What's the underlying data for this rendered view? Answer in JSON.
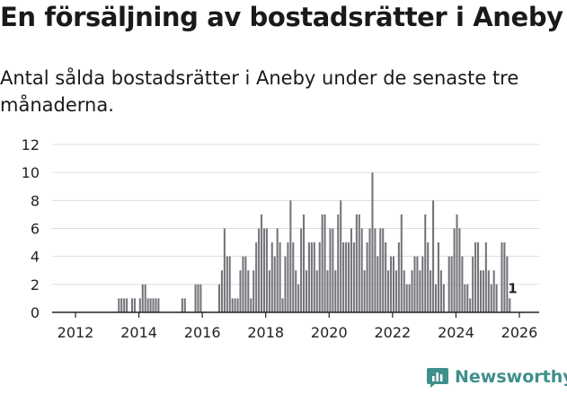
{
  "title": "En försäljning av bostadsrätter i Aneby",
  "subtitle": "Antal sålda bostadsrätter i Aneby under de senaste tre månaderna.",
  "brand": {
    "name": "Newsworthy"
  },
  "colors": {
    "bar": "#75737a",
    "highlight": "#3a9b96",
    "grid": "#dcdcdc",
    "axis": "#222222",
    "brand": "#3f8f8c"
  },
  "chart_data": {
    "type": "bar",
    "title": "En försäljning av bostadsrätter i Aneby",
    "xlabel": "",
    "ylabel": "",
    "x_start": 2011.6667,
    "bar_width_years": 0.0833,
    "ylim": [
      0,
      12
    ],
    "yticks": [
      0,
      2,
      4,
      6,
      8,
      10,
      12
    ],
    "xticks": [
      2012,
      2014,
      2016,
      2018,
      2020,
      2022,
      2024,
      2026
    ],
    "grid": true,
    "values": [
      0,
      0,
      0,
      0,
      0,
      0,
      0,
      0,
      0,
      0,
      0,
      0,
      0,
      0,
      0,
      0,
      0,
      0,
      0,
      0,
      1,
      1,
      1,
      1,
      0,
      1,
      1,
      0,
      1,
      2,
      2,
      1,
      1,
      1,
      1,
      1,
      0,
      0,
      0,
      0,
      0,
      0,
      0,
      0,
      1,
      1,
      0,
      0,
      0,
      2,
      2,
      2,
      0,
      0,
      0,
      0,
      0,
      0,
      2,
      3,
      6,
      4,
      4,
      1,
      1,
      1,
      3,
      4,
      4,
      3,
      1,
      3,
      5,
      6,
      7,
      6,
      6,
      3,
      5,
      4,
      6,
      5,
      1,
      4,
      5,
      8,
      5,
      3,
      2,
      6,
      7,
      3,
      5,
      5,
      5,
      3,
      5,
      7,
      7,
      3,
      6,
      6,
      3,
      7,
      8,
      5,
      5,
      5,
      6,
      5,
      7,
      7,
      6,
      3,
      5,
      6,
      10,
      6,
      4,
      6,
      6,
      5,
      3,
      4,
      4,
      3,
      5,
      7,
      3,
      2,
      2,
      3,
      4,
      4,
      3,
      4,
      7,
      5,
      3,
      8,
      2,
      5,
      3,
      2,
      0,
      4,
      4,
      6,
      7,
      6,
      4,
      2,
      2,
      1,
      4,
      5,
      5,
      3,
      3,
      5,
      3,
      2,
      3,
      2,
      0,
      5,
      5,
      4,
      1
    ],
    "highlight": {
      "index": 169,
      "value": 1,
      "label": "1"
    }
  }
}
